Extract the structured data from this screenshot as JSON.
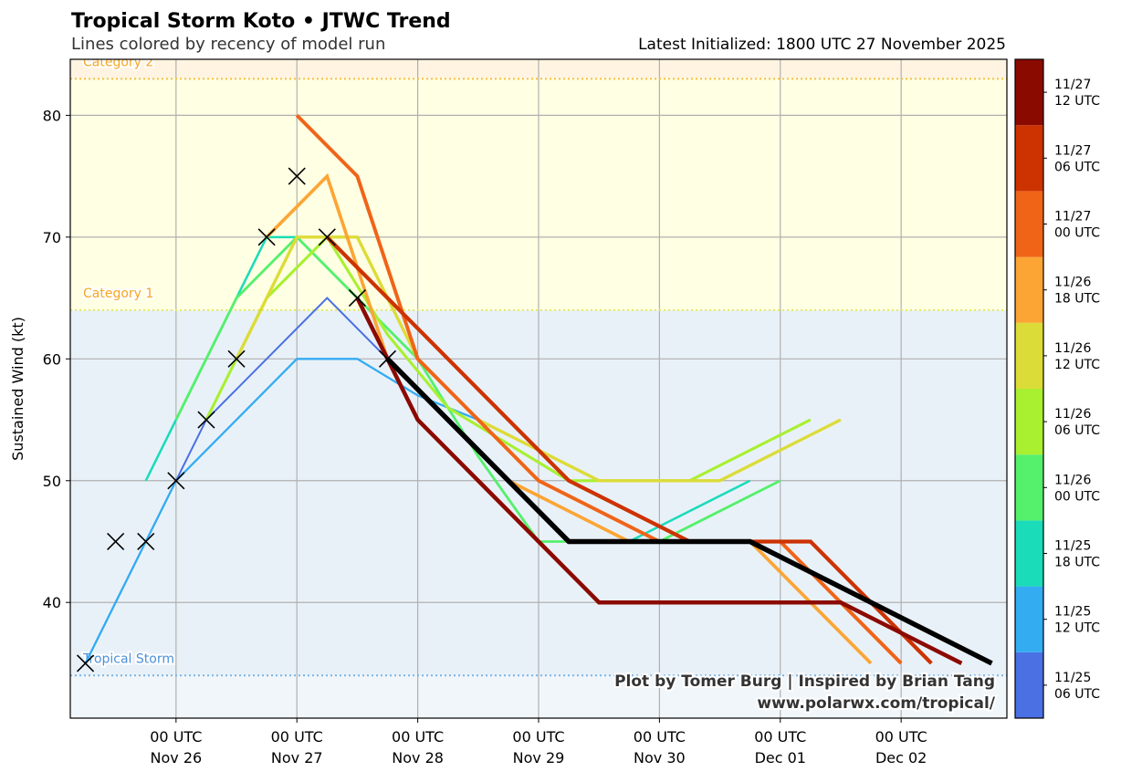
{
  "header": {
    "title": "Tropical Storm Koto • JTWC Trend",
    "subtitle": "Lines colored by recency of model run",
    "latest": "Latest Initialized: 1800 UTC 27 November 2025"
  },
  "credits": {
    "line1": "Plot by Tomer Burg | Inspired by Brian Tang",
    "line2": "www.polarwx.com/tropical/"
  },
  "chart_data": {
    "type": "line",
    "title": "Tropical Storm Koto • JTWC Trend",
    "ylabel": "Sustained Wind (kt)",
    "x_units": "hours since 00 UTC Nov 26 2025",
    "xlim": [
      -21,
      165
    ],
    "ylim": [
      30.5,
      84.6
    ],
    "yticks": [
      40,
      50,
      60,
      70,
      80
    ],
    "xticks": [
      {
        "h": 0,
        "top": "00 UTC",
        "bottom": "Nov 26"
      },
      {
        "h": 24,
        "top": "00 UTC",
        "bottom": "Nov 27"
      },
      {
        "h": 48,
        "top": "00 UTC",
        "bottom": "Nov 28"
      },
      {
        "h": 72,
        "top": "00 UTC",
        "bottom": "Nov 29"
      },
      {
        "h": 96,
        "top": "00 UTC",
        "bottom": "Nov 30"
      },
      {
        "h": 120,
        "top": "00 UTC",
        "bottom": "Dec 01"
      },
      {
        "h": 144,
        "top": "00 UTC",
        "bottom": "Dec 02"
      }
    ],
    "grid": true,
    "bands": [
      {
        "name": "Tropical Storm",
        "from": 34,
        "to": 64,
        "color": "#e9f1f8",
        "line": "#7ab4e6",
        "label_color": "#4a90d9"
      },
      {
        "name": "Category 1",
        "from": 64,
        "to": 83,
        "color": "#ffffe3",
        "line": "#e8e860",
        "label_color": "#f5a623"
      },
      {
        "name": "Category 2",
        "from": 83,
        "to": 100,
        "color": "#fff4e2",
        "line": "#f5c040",
        "label_color": "#f5a623"
      }
    ],
    "below_band_color": "#f1f6fa",
    "series": [
      {
        "name": "11/25 06 UTC",
        "d": "11/25",
        "t": "06 UTC",
        "color": "#4a70e4",
        "points": [
          [
            -18,
            35
          ],
          [
            -6,
            45
          ],
          [
            0,
            50
          ],
          [
            6,
            55
          ],
          [
            30,
            65
          ],
          [
            42,
            60
          ]
        ]
      },
      {
        "name": "11/25 12 UTC",
        "d": "11/25",
        "t": "12 UTC",
        "color": "#33acf2",
        "points": [
          [
            -18,
            35
          ],
          [
            0,
            50
          ],
          [
            24,
            60
          ],
          [
            36,
            60
          ],
          [
            48,
            57
          ],
          [
            60,
            55
          ]
        ]
      },
      {
        "name": "11/25 18 UTC",
        "d": "11/25",
        "t": "18 UTC",
        "color": "#1adcb8",
        "points": [
          [
            -6,
            50
          ],
          [
            6,
            60
          ],
          [
            18,
            70
          ],
          [
            24,
            70
          ],
          [
            36,
            65
          ],
          [
            42,
            60
          ],
          [
            54,
            55
          ],
          [
            66,
            50
          ],
          [
            90,
            45
          ],
          [
            114,
            50
          ]
        ]
      },
      {
        "name": "11/26 00 UTC",
        "d": "11/26",
        "t": "00 UTC",
        "color": "#55f06c",
        "points": [
          [
            0,
            55
          ],
          [
            12,
            65
          ],
          [
            24,
            70
          ],
          [
            36,
            65
          ],
          [
            48,
            60
          ],
          [
            60,
            52
          ],
          [
            72,
            45
          ],
          [
            96,
            45
          ],
          [
            120,
            50
          ]
        ]
      },
      {
        "name": "11/26 06 UTC",
        "d": "11/26",
        "t": "06 UTC",
        "color": "#a8f030",
        "points": [
          [
            6,
            55
          ],
          [
            18,
            65
          ],
          [
            30,
            70
          ],
          [
            42,
            62
          ],
          [
            54,
            56
          ],
          [
            66,
            53
          ],
          [
            78,
            50
          ],
          [
            102,
            50
          ],
          [
            126,
            55
          ]
        ]
      },
      {
        "name": "11/26 12 UTC",
        "d": "11/26",
        "t": "12 UTC",
        "color": "#dcdc38",
        "points": [
          [
            12,
            60
          ],
          [
            24,
            70
          ],
          [
            36,
            70
          ],
          [
            48,
            60
          ],
          [
            60,
            55
          ],
          [
            84,
            50
          ],
          [
            108,
            50
          ],
          [
            132,
            55
          ]
        ]
      },
      {
        "name": "11/26 18 UTC",
        "d": "11/26",
        "t": "18 UTC",
        "color": "#fca535",
        "points": [
          [
            18,
            70
          ],
          [
            30,
            75
          ],
          [
            42,
            60
          ],
          [
            54,
            55
          ],
          [
            66,
            50
          ],
          [
            90,
            45
          ],
          [
            114,
            45
          ],
          [
            138,
            35
          ]
        ]
      },
      {
        "name": "11/27 00 UTC",
        "d": "11/27",
        "t": "00 UTC",
        "color": "#f06418",
        "points": [
          [
            24,
            80
          ],
          [
            36,
            75
          ],
          [
            48,
            60
          ],
          [
            72,
            50
          ],
          [
            96,
            45
          ],
          [
            120,
            45
          ],
          [
            144,
            35
          ]
        ]
      },
      {
        "name": "11/27 06 UTC",
        "d": "11/27",
        "t": "06 UTC",
        "color": "#cc3300",
        "points": [
          [
            30,
            70
          ],
          [
            54,
            60
          ],
          [
            78,
            50
          ],
          [
            102,
            45
          ],
          [
            126,
            45
          ],
          [
            150,
            35
          ]
        ]
      },
      {
        "name": "11/27 12 UTC",
        "d": "11/27",
        "t": "12 UTC",
        "color": "#8b0a00",
        "points": [
          [
            36,
            65
          ],
          [
            48,
            55
          ],
          [
            60,
            50
          ],
          [
            72,
            45
          ],
          [
            84,
            40
          ],
          [
            132,
            40
          ],
          [
            156,
            35
          ]
        ]
      }
    ],
    "latest_run": {
      "name": "11/27 18 UTC",
      "color": "#000000",
      "points": [
        [
          42,
          60
        ],
        [
          54,
          55
        ],
        [
          66,
          50
        ],
        [
          78,
          45
        ],
        [
          114,
          45
        ],
        [
          138,
          40
        ],
        [
          162,
          35
        ]
      ]
    },
    "best_track": [
      [
        -18,
        35
      ],
      [
        -12,
        45
      ],
      [
        -6,
        45
      ],
      [
        0,
        50
      ],
      [
        6,
        55
      ],
      [
        12,
        60
      ],
      [
        18,
        70
      ],
      [
        24,
        75
      ],
      [
        30,
        70
      ],
      [
        36,
        65
      ],
      [
        42,
        60
      ]
    ]
  }
}
